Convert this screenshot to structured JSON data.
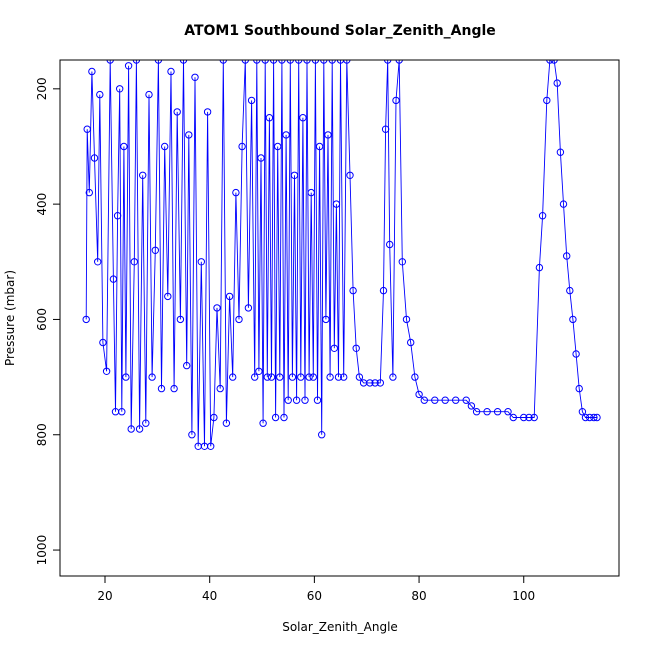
{
  "chart_data": {
    "type": "line",
    "title": "ATOM1 Southbound Solar_Zenith_Angle",
    "xlabel": "Solar_Zenith_Angle",
    "ylabel": "Pressure (mbar)",
    "xlim": [
      11.4,
      118.2
    ],
    "ylim": [
      1045,
      150
    ],
    "y_reversed": true,
    "grid": false,
    "legend": "none",
    "x_ticks": [
      20,
      40,
      60,
      80,
      100
    ],
    "y_ticks": [
      200,
      400,
      600,
      800,
      1000
    ],
    "marker": "open-circle",
    "colors": {
      "series": "#0000ff",
      "axis": "#000000",
      "background": "#ffffff"
    },
    "series": [
      {
        "points": [
          [
            16.4,
            600
          ],
          [
            16.6,
            270
          ],
          [
            17.0,
            380
          ],
          [
            17.5,
            170
          ],
          [
            18.0,
            320
          ],
          [
            18.6,
            500
          ],
          [
            19.0,
            210
          ],
          [
            19.6,
            640
          ],
          [
            20.3,
            690
          ],
          [
            21.0,
            150
          ],
          [
            21.6,
            530
          ],
          [
            22.0,
            760
          ],
          [
            22.4,
            420
          ],
          [
            22.8,
            200
          ],
          [
            23.2,
            760
          ],
          [
            23.6,
            300
          ],
          [
            24.0,
            700
          ],
          [
            24.5,
            160
          ],
          [
            25.0,
            790
          ],
          [
            25.6,
            500
          ],
          [
            26.0,
            150
          ],
          [
            26.6,
            790
          ],
          [
            27.2,
            350
          ],
          [
            27.8,
            780
          ],
          [
            28.4,
            210
          ],
          [
            29.0,
            700
          ],
          [
            29.6,
            480
          ],
          [
            30.2,
            150
          ],
          [
            30.8,
            720
          ],
          [
            31.4,
            300
          ],
          [
            32.0,
            560
          ],
          [
            32.6,
            170
          ],
          [
            33.2,
            720
          ],
          [
            33.8,
            240
          ],
          [
            34.4,
            600
          ],
          [
            35.0,
            150
          ],
          [
            35.6,
            680
          ],
          [
            36.0,
            280
          ],
          [
            36.6,
            800
          ],
          [
            37.2,
            180
          ],
          [
            37.8,
            820
          ],
          [
            38.4,
            500
          ],
          [
            39.0,
            820
          ],
          [
            39.6,
            240
          ],
          [
            40.2,
            820
          ],
          [
            40.8,
            770
          ],
          [
            41.4,
            580
          ],
          [
            42.0,
            720
          ],
          [
            42.6,
            150
          ],
          [
            43.2,
            780
          ],
          [
            43.8,
            560
          ],
          [
            44.4,
            700
          ],
          [
            45.0,
            380
          ],
          [
            45.6,
            600
          ],
          [
            46.2,
            300
          ],
          [
            46.8,
            150
          ],
          [
            47.4,
            580
          ],
          [
            48.0,
            220
          ],
          [
            48.6,
            700
          ],
          [
            49.0,
            150
          ],
          [
            49.4,
            690
          ],
          [
            49.8,
            320
          ],
          [
            50.2,
            780
          ],
          [
            50.6,
            150
          ],
          [
            51.0,
            700
          ],
          [
            51.4,
            250
          ],
          [
            51.8,
            700
          ],
          [
            52.2,
            150
          ],
          [
            52.6,
            770
          ],
          [
            53.0,
            300
          ],
          [
            53.4,
            700
          ],
          [
            53.8,
            150
          ],
          [
            54.2,
            770
          ],
          [
            54.6,
            280
          ],
          [
            55.0,
            740
          ],
          [
            55.4,
            150
          ],
          [
            55.8,
            700
          ],
          [
            56.2,
            350
          ],
          [
            56.6,
            740
          ],
          [
            57.0,
            150
          ],
          [
            57.4,
            700
          ],
          [
            57.8,
            250
          ],
          [
            58.2,
            740
          ],
          [
            58.6,
            150
          ],
          [
            59.0,
            700
          ],
          [
            59.4,
            380
          ],
          [
            59.8,
            700
          ],
          [
            60.2,
            150
          ],
          [
            60.6,
            740
          ],
          [
            61.0,
            300
          ],
          [
            61.4,
            800
          ],
          [
            61.8,
            150
          ],
          [
            62.2,
            600
          ],
          [
            62.6,
            280
          ],
          [
            63.0,
            700
          ],
          [
            63.4,
            150
          ],
          [
            63.8,
            650
          ],
          [
            64.2,
            400
          ],
          [
            64.6,
            700
          ],
          [
            65.0,
            150
          ],
          [
            65.6,
            700
          ],
          [
            66.2,
            150
          ],
          [
            66.8,
            350
          ],
          [
            67.4,
            550
          ],
          [
            68.0,
            650
          ],
          [
            68.6,
            700
          ],
          [
            69.4,
            710
          ],
          [
            70.6,
            710
          ],
          [
            71.6,
            710
          ],
          [
            72.6,
            710
          ],
          [
            73.2,
            550
          ],
          [
            73.6,
            270
          ],
          [
            74.0,
            150
          ],
          [
            74.4,
            470
          ],
          [
            75.0,
            700
          ],
          [
            75.6,
            220
          ],
          [
            76.2,
            150
          ],
          [
            76.8,
            500
          ],
          [
            77.6,
            600
          ],
          [
            78.4,
            640
          ],
          [
            79.2,
            700
          ],
          [
            80.0,
            730
          ],
          [
            81.0,
            740
          ],
          [
            83.0,
            740
          ],
          [
            85.0,
            740
          ],
          [
            87.0,
            740
          ],
          [
            89.0,
            740
          ],
          [
            90.0,
            750
          ],
          [
            91.0,
            760
          ],
          [
            93.0,
            760
          ],
          [
            95.0,
            760
          ],
          [
            97.0,
            760
          ],
          [
            98.0,
            770
          ],
          [
            100.0,
            770
          ],
          [
            101.0,
            770
          ],
          [
            102.0,
            770
          ],
          [
            103.0,
            510
          ],
          [
            103.6,
            420
          ],
          [
            104.4,
            220
          ],
          [
            105.0,
            150
          ],
          [
            105.8,
            150
          ],
          [
            106.4,
            190
          ],
          [
            107.0,
            310
          ],
          [
            107.6,
            400
          ],
          [
            108.2,
            490
          ],
          [
            108.8,
            550
          ],
          [
            109.4,
            600
          ],
          [
            110.0,
            660
          ],
          [
            110.6,
            720
          ],
          [
            111.2,
            760
          ],
          [
            111.8,
            770
          ],
          [
            112.6,
            770
          ],
          [
            113.4,
            770
          ],
          [
            114.0,
            770
          ]
        ]
      }
    ]
  }
}
